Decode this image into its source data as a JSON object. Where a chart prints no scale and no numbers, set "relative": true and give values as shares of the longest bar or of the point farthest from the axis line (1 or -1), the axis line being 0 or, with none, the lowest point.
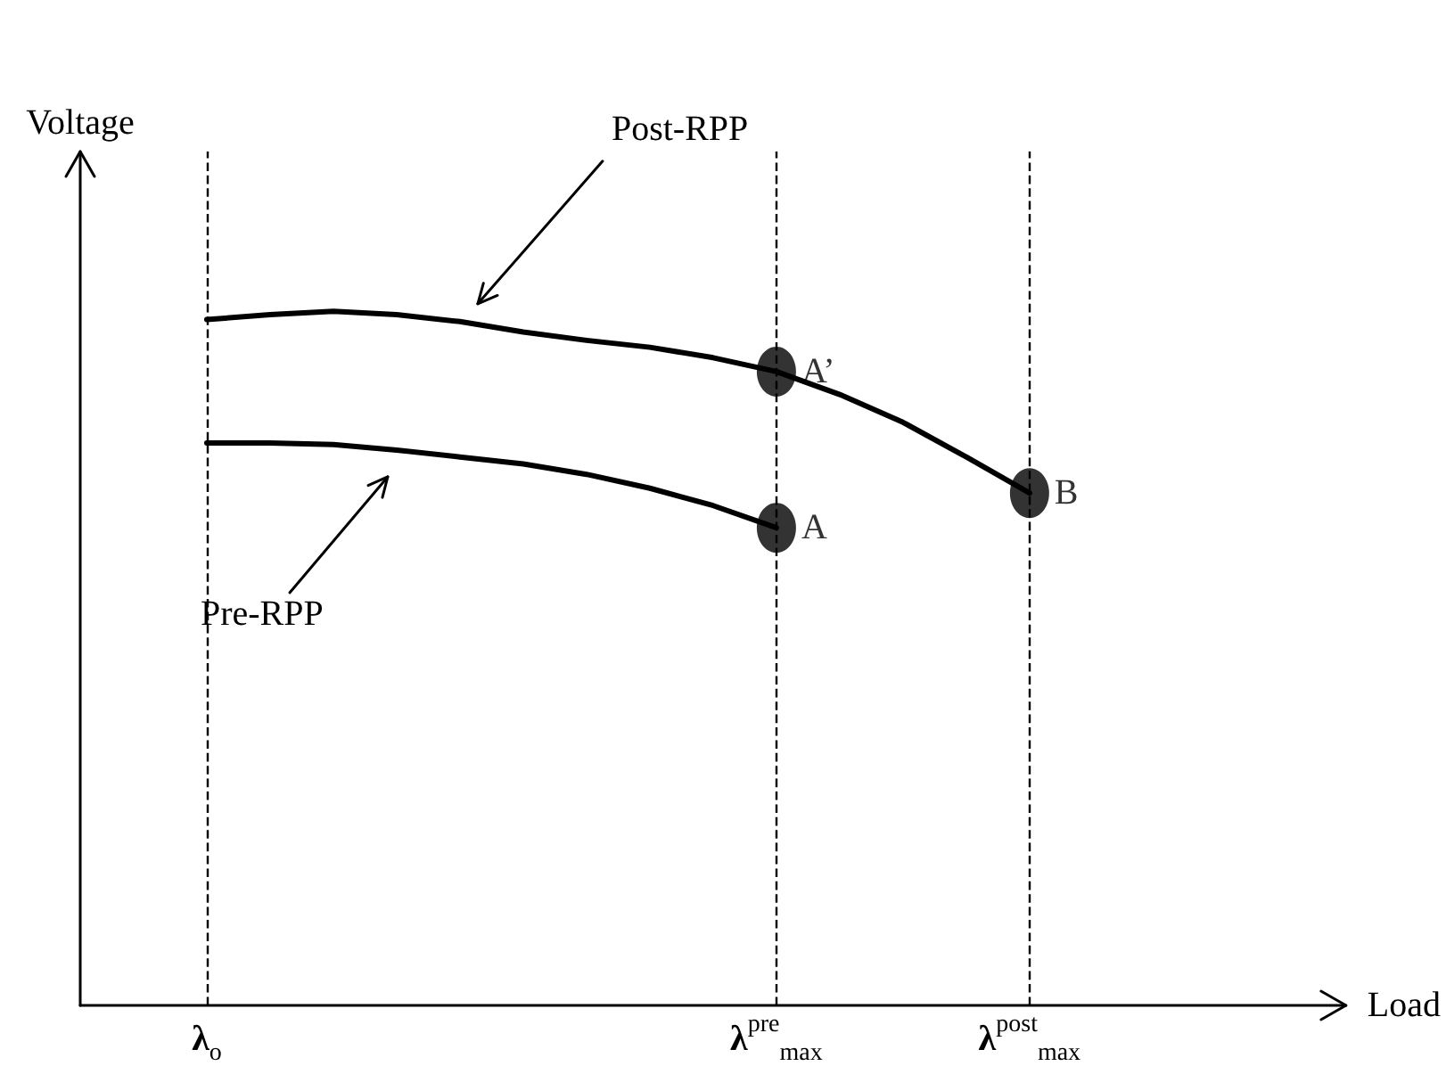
{
  "chart_data": {
    "type": "line",
    "relative": true,
    "xlabel": "Load",
    "ylabel": "Voltage",
    "categories": [
      null,
      null,
      "λ$_{o}$",
      null,
      null,
      null,
      null,
      null,
      null,
      null,
      null,
      "λ$^{pre}$$_{max}$",
      null,
      null,
      null,
      "λ$^{post}$$_{max}$",
      null,
      null,
      null,
      null,
      null
    ],
    "series": [
      {
        "name": "Post-RPP",
        "color": "#000000",
        "values": [
          null,
          null,
          0.988,
          0.995,
          1,
          0.995,
          0.985,
          0.97,
          0.958,
          0.948,
          0.933,
          0.913,
          0.88,
          0.84,
          0.79,
          0.738,
          null,
          null,
          null,
          null,
          null
        ]
      },
      {
        "name": "Pre-RPP",
        "color": "#000000",
        "values": [
          null,
          null,
          0.81,
          0.81,
          0.808,
          0.8,
          0.79,
          0.78,
          0.765,
          0.745,
          0.72,
          0.688,
          null,
          null,
          null,
          null,
          null,
          null,
          null,
          null,
          null
        ]
      },
      {
        "type": "scatter",
        "marker": "circle",
        "color": "#000000",
        "values": [
          null,
          null,
          null,
          null,
          null,
          null,
          null,
          null,
          null,
          null,
          null,
          0.688,
          null,
          null,
          null,
          0.738,
          null,
          null,
          null,
          null,
          null
        ]
      },
      {
        "type": "scatter",
        "marker": "circle",
        "color": "#000000",
        "values": [
          null,
          null,
          null,
          null,
          null,
          null,
          null,
          null,
          null,
          null,
          null,
          0.913,
          null,
          null,
          null,
          null,
          null,
          null,
          null,
          null,
          null
        ]
      }
    ],
    "annotations": [
      {
        "text": "A",
        "x": "λ$^{pre}$$_{max}$",
        "y": 0.688
      },
      {
        "text": "A’",
        "x": "λ$^{pre}$$_{max}$",
        "y": 0.913
      },
      {
        "text": "B",
        "x": "λ$^{post}$$_{max}$",
        "y": 0.738
      }
    ],
    "ref_lines": [
      {
        "axis": "x",
        "value": "λ$_{o}$",
        "label": null,
        "color": "#000000",
        "line_style": "dashed"
      },
      {
        "axis": "x",
        "value": "λ$^{pre}$$_{max}$",
        "label": null,
        "color": "#000000",
        "line_style": "dashed"
      },
      {
        "axis": "x",
        "value": "λ$^{post}$$_{max}$",
        "label": null,
        "color": "#000000",
        "line_style": "dashed"
      }
    ],
    "tick_labels": "x",
    "grid": false,
    "legend": false,
    "marker": "none",
    "line_style": "solid"
  }
}
